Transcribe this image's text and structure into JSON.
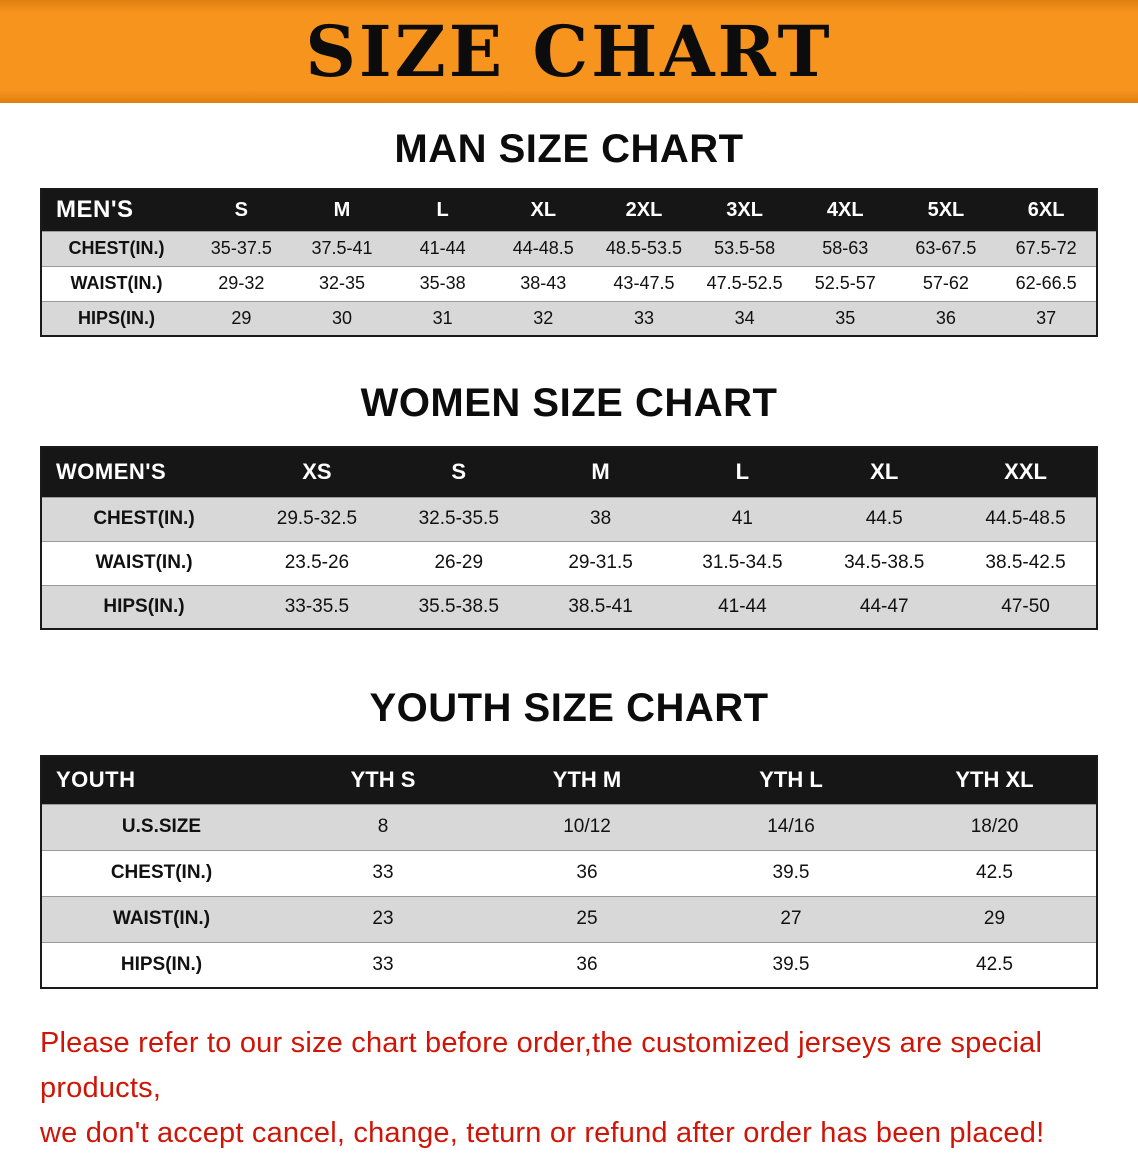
{
  "banner": {
    "title": "SIZE CHART"
  },
  "men": {
    "heading": "MAN SIZE CHART",
    "table": {
      "header": [
        "MEN'S",
        "S",
        "M",
        "L",
        "XL",
        "2XL",
        "3XL",
        "4XL",
        "5XL",
        "6XL"
      ],
      "rows": [
        [
          "CHEST(IN.)",
          "35-37.5",
          "37.5-41",
          "41-44",
          "44-48.5",
          "48.5-53.5",
          "53.5-58",
          "58-63",
          "63-67.5",
          "67.5-72"
        ],
        [
          "WAIST(IN.)",
          "29-32",
          "32-35",
          "35-38",
          "38-43",
          "43-47.5",
          "47.5-52.5",
          "52.5-57",
          "57-62",
          "62-66.5"
        ],
        [
          "HIPS(IN.)",
          "29",
          "30",
          "31",
          "32",
          "33",
          "34",
          "35",
          "36",
          "37"
        ]
      ]
    }
  },
  "women": {
    "heading": "WOMEN SIZE CHART",
    "table": {
      "header": [
        "WOMEN'S",
        "XS",
        "S",
        "M",
        "L",
        "XL",
        "XXL"
      ],
      "rows": [
        [
          "CHEST(IN.)",
          "29.5-32.5",
          "32.5-35.5",
          "38",
          "41",
          "44.5",
          "44.5-48.5"
        ],
        [
          "WAIST(IN.)",
          "23.5-26",
          "26-29",
          "29-31.5",
          "31.5-34.5",
          "34.5-38.5",
          "38.5-42.5"
        ],
        [
          "HIPS(IN.)",
          "33-35.5",
          "35.5-38.5",
          "38.5-41",
          "41-44",
          "44-47",
          "47-50"
        ]
      ]
    }
  },
  "youth": {
    "heading": "YOUTH SIZE CHART",
    "table": {
      "header": [
        "YOUTH",
        "YTH S",
        "YTH M",
        "YTH L",
        "YTH XL"
      ],
      "rows": [
        [
          "U.S.SIZE",
          "8",
          "10/12",
          "14/16",
          "18/20"
        ],
        [
          "CHEST(IN.)",
          "33",
          "36",
          "39.5",
          "42.5"
        ],
        [
          "WAIST(IN.)",
          "23",
          "25",
          "27",
          "29"
        ],
        [
          "HIPS(IN.)",
          "33",
          "36",
          "39.5",
          "42.5"
        ]
      ]
    }
  },
  "disclaimer": {
    "line1": "Please refer to our size chart before order,the customized jerseys are special products,",
    "line2": "we don't accept cancel, change, teturn or refund after order has been placed!"
  },
  "colors": {
    "banner_orange": "#f7941e",
    "banner_orange_dark": "#df7e0e",
    "header_black": "#161616",
    "stripe_gray": "#d8d8d8",
    "disclaimer_red": "#cf1507"
  }
}
